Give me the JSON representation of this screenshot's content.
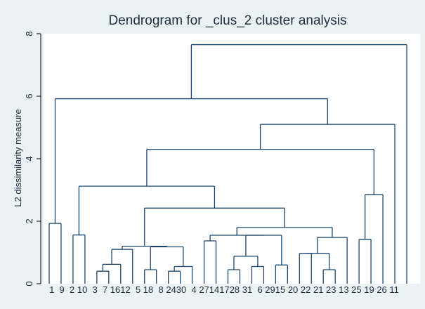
{
  "chart_data": {
    "type": "dendrogram",
    "title": "Dendrogram for _clus_2 cluster analysis",
    "ylabel": "L2 dissimilarity measure",
    "xlabel": "",
    "ylim": [
      0,
      8
    ],
    "yticks": [
      0,
      2,
      4,
      6,
      8
    ],
    "ytick_labels": [
      "0",
      "2",
      "4",
      "6",
      "8"
    ],
    "grid": false,
    "leaf_order": [
      "1",
      "9",
      "2",
      "10",
      "3",
      "7",
      "16",
      "12",
      "5",
      "18",
      "8",
      "24",
      "30",
      "4",
      "27",
      "14",
      "17",
      "28",
      "31",
      "6",
      "29",
      "15",
      "20",
      "22",
      "21",
      "23",
      "13",
      "25",
      "19",
      "26",
      "11"
    ],
    "leaf_label_text": "1  9  2 10  3  7 1612  5 18  8 2430  4 27141728 31  6 2915 20 22 21 23 13 25 19 26 11",
    "merges": [
      {
        "members": [
          "1",
          "9"
        ],
        "height": 1.93
      },
      {
        "members": [
          "2",
          "10"
        ],
        "height": 1.56
      },
      {
        "members": [
          "3",
          "7"
        ],
        "height": 0.4
      },
      {
        "members": [
          "3",
          "7",
          "16"
        ],
        "height": 0.62
      },
      {
        "members": [
          "3",
          "7",
          "16",
          "12"
        ],
        "height": 1.1
      },
      {
        "members": [
          "5",
          "18"
        ],
        "height": 0.45
      },
      {
        "members": [
          "8",
          "24"
        ],
        "height": 0.4
      },
      {
        "members": [
          "8",
          "24",
          "30"
        ],
        "height": 0.55
      },
      {
        "members": [
          "5",
          "18",
          "8",
          "24",
          "30"
        ],
        "height": 1.18
      },
      {
        "members": [
          "3",
          "7",
          "16",
          "12",
          "5",
          "18",
          "8",
          "24",
          "30"
        ],
        "height": 1.2
      },
      {
        "members": [
          "4",
          "27"
        ],
        "height": 1.37
      },
      {
        "members": [
          "14",
          "17"
        ],
        "height": 0.45
      },
      {
        "members": [
          "28",
          "31"
        ],
        "height": 0.55
      },
      {
        "members": [
          "14",
          "17",
          "28",
          "31"
        ],
        "height": 0.88
      },
      {
        "members": [
          "6",
          "29"
        ],
        "height": 0.6
      },
      {
        "members": [
          "14",
          "17",
          "28",
          "31",
          "6",
          "29"
        ],
        "height": 1.55
      },
      {
        "members": [
          "4",
          "27",
          "14",
          "17",
          "28",
          "31",
          "6",
          "29"
        ],
        "height": 1.55
      },
      {
        "members": [
          "15",
          "20"
        ],
        "height": 0.97
      },
      {
        "members": [
          "22",
          "21"
        ],
        "height": 0.45
      },
      {
        "members": [
          "15",
          "20",
          "22",
          "21"
        ],
        "height": 0.97
      },
      {
        "members": [
          "15",
          "20",
          "22",
          "21",
          "23"
        ],
        "height": 1.48
      },
      {
        "members": [
          "4",
          "27",
          "14",
          "17",
          "28",
          "31",
          "6",
          "29",
          "15",
          "20",
          "22",
          "21",
          "23"
        ],
        "height": 1.8
      },
      {
        "members": [
          "3",
          "7",
          "16",
          "12",
          "5",
          "18",
          "8",
          "24",
          "30",
          "4",
          "27",
          "14",
          "17",
          "28",
          "31",
          "6",
          "29",
          "15",
          "20",
          "22",
          "21",
          "23"
        ],
        "height": 2.42
      },
      {
        "members": [
          "2",
          "10",
          "3",
          "7",
          "16",
          "12",
          "5",
          "18",
          "8",
          "24",
          "30",
          "4",
          "27",
          "14",
          "17",
          "28",
          "31",
          "6",
          "29",
          "15",
          "20",
          "22",
          "21",
          "23"
        ],
        "height": 3.12
      },
      {
        "members": [
          "13",
          "25"
        ],
        "height": 1.42
      },
      {
        "members": [
          "13",
          "25",
          "19"
        ],
        "height": 2.85
      },
      {
        "members": [
          "2",
          "10",
          "3",
          "7",
          "16",
          "12",
          "5",
          "18",
          "8",
          "24",
          "30",
          "4",
          "27",
          "14",
          "17",
          "28",
          "31",
          "6",
          "29",
          "15",
          "20",
          "22",
          "21",
          "23",
          "13",
          "25",
          "19"
        ],
        "height": 4.3
      },
      {
        "members": [
          "2",
          "10",
          "3",
          "7",
          "16",
          "12",
          "5",
          "18",
          "8",
          "24",
          "30",
          "4",
          "27",
          "14",
          "17",
          "28",
          "31",
          "6",
          "29",
          "15",
          "20",
          "22",
          "21",
          "23",
          "13",
          "25",
          "19",
          "26"
        ],
        "height": 5.1
      },
      {
        "members": [
          "1",
          "9",
          "2",
          "10",
          "3",
          "7",
          "16",
          "12",
          "5",
          "18",
          "8",
          "24",
          "30",
          "4",
          "27",
          "14",
          "17",
          "28",
          "31",
          "6",
          "29",
          "15",
          "20",
          "22",
          "21",
          "23",
          "13",
          "25",
          "19",
          "26"
        ],
        "height": 5.92
      },
      {
        "members": [
          "1",
          "9",
          "2",
          "10",
          "3",
          "7",
          "16",
          "12",
          "5",
          "18",
          "8",
          "24",
          "30",
          "4",
          "27",
          "14",
          "17",
          "28",
          "31",
          "6",
          "29",
          "15",
          "20",
          "22",
          "21",
          "23",
          "13",
          "25",
          "19",
          "26",
          "11"
        ],
        "height": 7.65
      }
    ]
  }
}
